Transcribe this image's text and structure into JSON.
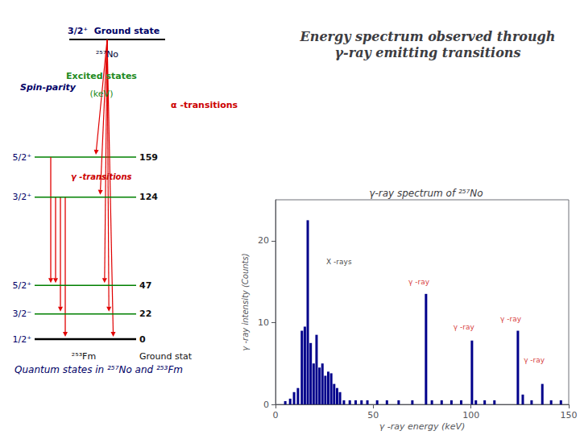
{
  "chart_data": [
    {
      "type": "bar",
      "title": "Energy spectrum observed through\nγ-ray emitting transitions",
      "subtitle": "γ-ray spectrum of ²⁵⁷No",
      "xlabel": "γ -ray energy (keV)",
      "ylabel": "γ -ray intensity (Counts)",
      "x": [
        5.0,
        7.5,
        9.5,
        11.5,
        13.5,
        15.0,
        16.5,
        18.0,
        19.5,
        21.0,
        22.5,
        24.0,
        25.5,
        27.0,
        28.5,
        30.0,
        31.5,
        33.0,
        35.0,
        38.0,
        41.0,
        44.0,
        47.0,
        52.0,
        57.0,
        63.0,
        70.0,
        77.0,
        80.0,
        85.0,
        90.0,
        95.0,
        100.5,
        102.5,
        107.0,
        112.0,
        124.0,
        126.5,
        131.0,
        136.5,
        141.0,
        146.0
      ],
      "values": [
        0.4,
        0.7,
        1.5,
        2.0,
        9.0,
        9.5,
        22.5,
        7.5,
        5.0,
        8.5,
        4.5,
        5.0,
        3.5,
        4.0,
        3.8,
        2.5,
        2.0,
        1.5,
        0.5,
        0.5,
        0.5,
        0.5,
        0.5,
        0.5,
        0.5,
        0.5,
        0.5,
        13.5,
        0.5,
        0.5,
        0.5,
        0.5,
        7.8,
        0.5,
        0.5,
        0.5,
        9.0,
        1.2,
        0.5,
        2.5,
        0.5,
        0.5
      ],
      "color": "#00008b",
      "xlim": [
        0,
        150
      ],
      "xticks": [
        0,
        50,
        100,
        150
      ],
      "ylim": [
        0,
        25
      ],
      "yticks": [
        0,
        10,
        20
      ],
      "grid": false,
      "annotations": [
        {
          "text": "X -rays",
          "x": 26,
          "y": 17.0,
          "color": "#111111"
        },
        {
          "text": "γ -ray",
          "x": 68,
          "y": 14.5,
          "color": "#cc0000"
        },
        {
          "text": "γ -ray",
          "x": 91,
          "y": 9.0,
          "color": "#cc0000"
        },
        {
          "text": "γ -ray",
          "x": 115,
          "y": 10.0,
          "color": "#cc0000"
        },
        {
          "text": "γ -ray",
          "x": 127,
          "y": 5.0,
          "color": "#cc0000"
        }
      ]
    },
    {
      "type": "levels",
      "categories": [
        "5/2⁺",
        "3/2⁺",
        "5/2⁺",
        "3/2⁻",
        "1/2⁺"
      ],
      "values": [
        159,
        124,
        47,
        22,
        0
      ],
      "colors": [
        "#008000",
        "#008000",
        "#008000",
        "#008000",
        "#000000"
      ],
      "gamma_transitions": [
        {
          "from": 159,
          "to": 47
        },
        {
          "from": 124,
          "to": 47
        },
        {
          "from": 124,
          "to": 22
        },
        {
          "from": 124,
          "to": 0
        }
      ],
      "alpha_transitions": [
        159,
        124,
        47,
        22,
        0
      ],
      "annotations": [
        {
          "text": "3/2⁺  Ground state",
          "color": "#000066"
        },
        {
          "text": "²⁵⁷No",
          "color": "#000033"
        },
        {
          "text": "Spin-parity",
          "color": "#000066"
        },
        {
          "text": "Excited states",
          "color": "#228B22"
        },
        {
          "text": "(keV)",
          "color": "#228B22"
        },
        {
          "text": "α -transitions",
          "color": "#cc0000"
        },
        {
          "text": "γ -transitions",
          "color": "#cc0000"
        },
        {
          "text": "²⁵³Fm",
          "color": "#111111"
        },
        {
          "text": "Ground stat",
          "color": "#111111"
        },
        {
          "text": "Quantum states in ²⁵⁷No and ²⁵³Fm",
          "color": "#000066"
        }
      ]
    }
  ]
}
